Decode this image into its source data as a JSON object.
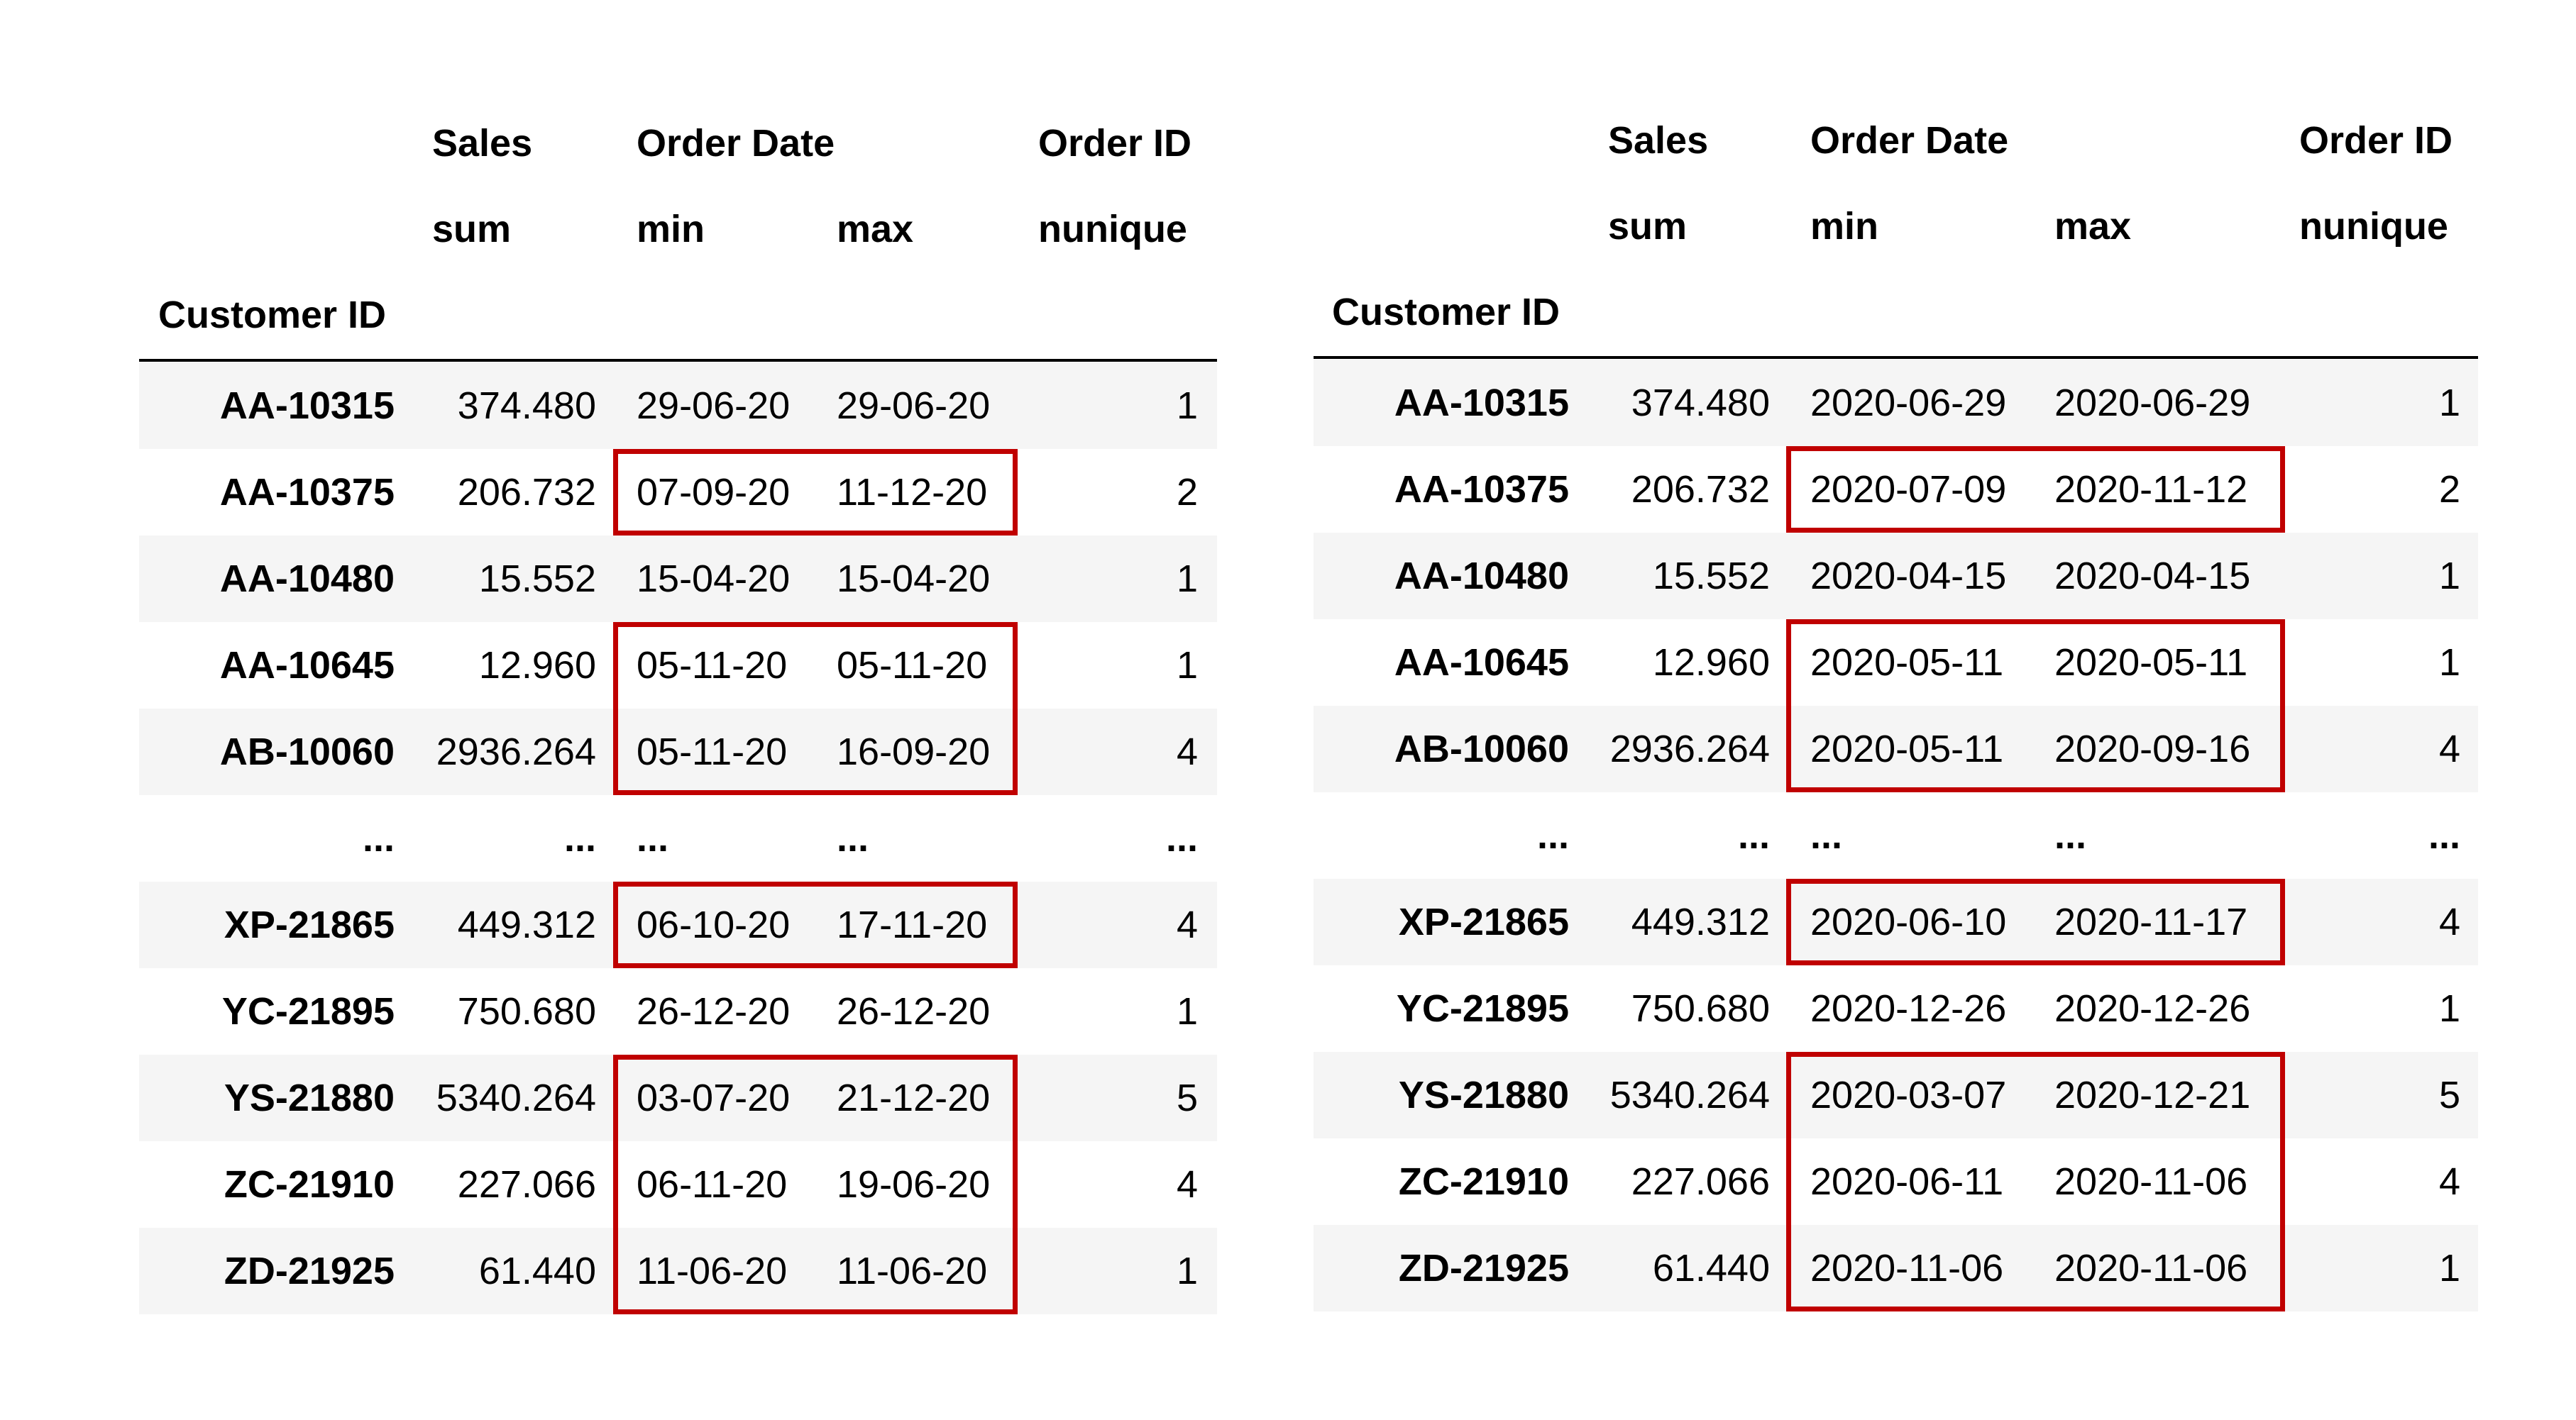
{
  "tables": [
    {
      "header": {
        "level1": [
          "Sales",
          "Order Date",
          "Order ID"
        ],
        "level2": [
          "sum",
          "min",
          "max",
          "nunique"
        ],
        "index_name": "Customer ID"
      },
      "rows": [
        {
          "id": "AA-10315",
          "sales": "374.480",
          "min": "29-06-20",
          "max": "29-06-20",
          "nunique": "1"
        },
        {
          "id": "AA-10375",
          "sales": "206.732",
          "min": "07-09-20",
          "max": "11-12-20",
          "nunique": "2"
        },
        {
          "id": "AA-10480",
          "sales": "15.552",
          "min": "15-04-20",
          "max": "15-04-20",
          "nunique": "1"
        },
        {
          "id": "AA-10645",
          "sales": "12.960",
          "min": "05-11-20",
          "max": "05-11-20",
          "nunique": "1"
        },
        {
          "id": "AB-10060",
          "sales": "2936.264",
          "min": "05-11-20",
          "max": "16-09-20",
          "nunique": "4"
        },
        {
          "id": "...",
          "sales": "...",
          "min": "...",
          "max": "...",
          "nunique": "..."
        },
        {
          "id": "XP-21865",
          "sales": "449.312",
          "min": "06-10-20",
          "max": "17-11-20",
          "nunique": "4"
        },
        {
          "id": "YC-21895",
          "sales": "750.680",
          "min": "26-12-20",
          "max": "26-12-20",
          "nunique": "1"
        },
        {
          "id": "YS-21880",
          "sales": "5340.264",
          "min": "03-07-20",
          "max": "21-12-20",
          "nunique": "5"
        },
        {
          "id": "ZC-21910",
          "sales": "227.066",
          "min": "06-11-20",
          "max": "19-06-20",
          "nunique": "4"
        },
        {
          "id": "ZD-21925",
          "sales": "61.440",
          "min": "11-06-20",
          "max": "11-06-20",
          "nunique": "1"
        }
      ]
    },
    {
      "header": {
        "level1": [
          "Sales",
          "Order Date",
          "Order ID"
        ],
        "level2": [
          "sum",
          "min",
          "max",
          "nunique"
        ],
        "index_name": "Customer ID"
      },
      "rows": [
        {
          "id": "AA-10315",
          "sales": "374.480",
          "min": "2020-06-29",
          "max": "2020-06-29",
          "nunique": "1"
        },
        {
          "id": "AA-10375",
          "sales": "206.732",
          "min": "2020-07-09",
          "max": "2020-11-12",
          "nunique": "2"
        },
        {
          "id": "AA-10480",
          "sales": "15.552",
          "min": "2020-04-15",
          "max": "2020-04-15",
          "nunique": "1"
        },
        {
          "id": "AA-10645",
          "sales": "12.960",
          "min": "2020-05-11",
          "max": "2020-05-11",
          "nunique": "1"
        },
        {
          "id": "AB-10060",
          "sales": "2936.264",
          "min": "2020-05-11",
          "max": "2020-09-16",
          "nunique": "4"
        },
        {
          "id": "...",
          "sales": "...",
          "min": "...",
          "max": "...",
          "nunique": "..."
        },
        {
          "id": "XP-21865",
          "sales": "449.312",
          "min": "2020-06-10",
          "max": "2020-11-17",
          "nunique": "4"
        },
        {
          "id": "YC-21895",
          "sales": "750.680",
          "min": "2020-12-26",
          "max": "2020-12-26",
          "nunique": "1"
        },
        {
          "id": "YS-21880",
          "sales": "5340.264",
          "min": "2020-03-07",
          "max": "2020-12-21",
          "nunique": "5"
        },
        {
          "id": "ZC-21910",
          "sales": "227.066",
          "min": "2020-06-11",
          "max": "2020-11-06",
          "nunique": "4"
        },
        {
          "id": "ZD-21925",
          "sales": "61.440",
          "min": "2020-11-06",
          "max": "2020-11-06",
          "nunique": "1"
        }
      ]
    }
  ],
  "highlight_color": "#c00000",
  "shading_color": "#f5f5f5"
}
